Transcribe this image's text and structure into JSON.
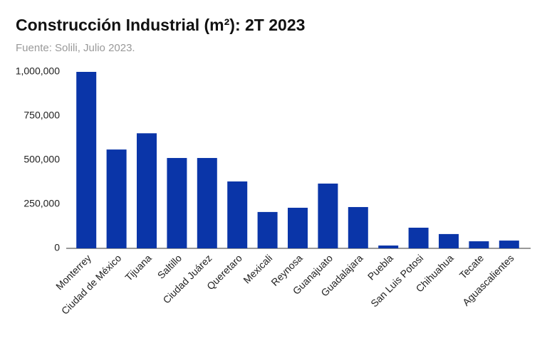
{
  "chart_data": {
    "type": "bar",
    "title": "Construcción Industrial (m²): 2T 2023",
    "subtitle": "Fuente: Solili, Julio 2023.",
    "categories": [
      "Monterrey",
      "Ciudad de México",
      "Tijuana",
      "Saltillo",
      "Ciudad Juárez",
      "Queretaro",
      "Mexicali",
      "Reynosa",
      "Guanajuato",
      "Guadalajara",
      "Puebla",
      "San Luis Potosi",
      "Chihuahua",
      "Tecate",
      "Aguascalientes"
    ],
    "values": [
      1000000,
      560000,
      652000,
      512000,
      512000,
      379000,
      206000,
      230000,
      367000,
      234000,
      16000,
      117000,
      81000,
      40000,
      44000
    ],
    "color": "#0a35a8",
    "ylim": [
      0,
      1000000
    ],
    "yticks": [
      0,
      {
        "value": 250000,
        "label": "250,000"
      },
      {
        "value": 500000,
        "label": "500,000"
      },
      {
        "value": 750000,
        "label": "750,000"
      },
      {
        "value": 1000000,
        "label": "1,000,000"
      }
    ],
    "grid": false
  }
}
